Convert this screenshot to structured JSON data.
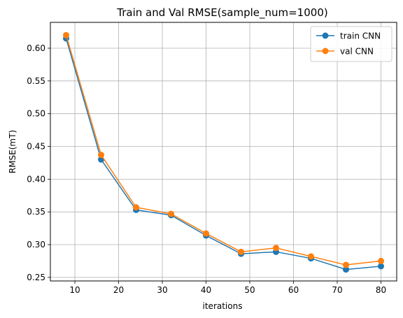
{
  "chart_data": {
    "type": "line",
    "title": "Train and Val RMSE(sample_num=1000)",
    "xlabel": "iterations",
    "ylabel": "RMSE(mT)",
    "xlim": [
      4.4,
      83.6
    ],
    "ylim": [
      0.2445,
      0.6395
    ],
    "xticks": [
      10,
      20,
      30,
      40,
      50,
      60,
      70,
      80
    ],
    "xtick_labels": [
      "10",
      "20",
      "30",
      "40",
      "50",
      "60",
      "70",
      "80"
    ],
    "yticks": [
      0.25,
      0.3,
      0.35,
      0.4,
      0.45,
      0.5,
      0.55,
      0.6
    ],
    "ytick_labels": [
      "0.25",
      "0.30",
      "0.35",
      "0.40",
      "0.45",
      "0.50",
      "0.55",
      "0.60"
    ],
    "grid": true,
    "legend_position": "top-right",
    "x": [
      8,
      16,
      24,
      32,
      40,
      48,
      56,
      64,
      72,
      80
    ],
    "series": [
      {
        "name": "train CNN",
        "color": "#1f77b4",
        "marker": "circle",
        "values": [
          0.615,
          0.43,
          0.353,
          0.345,
          0.314,
          0.286,
          0.289,
          0.279,
          0.262,
          0.267
        ]
      },
      {
        "name": "val CNN",
        "color": "#ff7f0e",
        "marker": "circle",
        "values": [
          0.62,
          0.437,
          0.357,
          0.347,
          0.317,
          0.289,
          0.295,
          0.282,
          0.269,
          0.275
        ]
      }
    ]
  }
}
